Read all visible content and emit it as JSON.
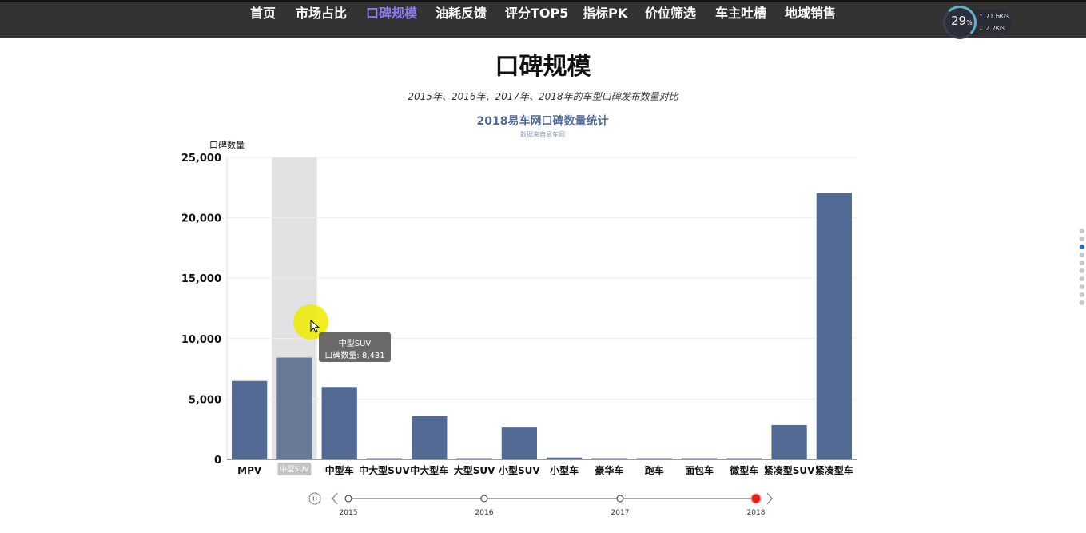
{
  "nav": {
    "items": [
      {
        "label": "首页",
        "active": false
      },
      {
        "label": "市场占比",
        "active": false
      },
      {
        "label": "口碑规模",
        "active": true
      },
      {
        "label": "油耗反馈",
        "active": false
      },
      {
        "label": "评分TOP5",
        "active": false
      },
      {
        "label": "指标PK",
        "active": false
      },
      {
        "label": "价位筛选",
        "active": false
      },
      {
        "label": "车主吐槽",
        "active": false
      },
      {
        "label": "地域销售",
        "active": false
      }
    ]
  },
  "netmon": {
    "percent": "29",
    "percent_unit": "%",
    "up": "71.6",
    "down": "2.2",
    "unit": "K/s"
  },
  "page": {
    "title": "口碑规模",
    "subtitle": "2015年、2016年、2017年、2018年的车型口碑发布数量对比"
  },
  "colors": {
    "bar": "#536a95",
    "bar_highlight": "#697a98",
    "timeline_current": "#e0201b",
    "title": "#536a95"
  },
  "chart_data": {
    "type": "bar",
    "title": "2018易车网口碑数量统计",
    "subtitle": "数据来自易车网",
    "ylabel": "口碑数量",
    "xlabel": "",
    "ylim": [
      0,
      25000
    ],
    "yticks": [
      "0",
      "5,000",
      "10,000",
      "15,000",
      "20,000",
      "25,000"
    ],
    "ytick_values": [
      0,
      5000,
      10000,
      15000,
      20000,
      25000
    ],
    "categories": [
      "MPV",
      "中型SUV",
      "中型车",
      "中大型SUV",
      "中大型车",
      "大型SUV",
      "小型SUV",
      "小型车",
      "豪华车",
      "跑车",
      "面包车",
      "微型车",
      "紧凑型SUV",
      "紧凑型车"
    ],
    "series": [
      {
        "values": [
          6500,
          8431,
          6000,
          80,
          3600,
          30,
          2700,
          150,
          20,
          60,
          60,
          15,
          2850,
          22050
        ]
      }
    ],
    "grid": true,
    "highlight_index": 1,
    "tooltip": {
      "category": "中型SUV",
      "series_label": "口碑数量",
      "value": "8,431"
    },
    "timeline": {
      "labels": [
        "2015",
        "2016",
        "2017",
        "2018"
      ],
      "current": "2018"
    }
  }
}
